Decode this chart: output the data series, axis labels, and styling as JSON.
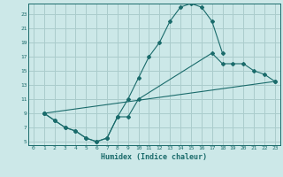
{
  "xlabel": "Humidex (Indice chaleur)",
  "bg_color": "#cce8e8",
  "grid_color": "#aacccc",
  "line_color": "#1a6b6b",
  "xlim": [
    -0.5,
    23.5
  ],
  "ylim": [
    4.5,
    24.5
  ],
  "xticks": [
    0,
    1,
    2,
    3,
    4,
    5,
    6,
    7,
    8,
    9,
    10,
    11,
    12,
    13,
    14,
    15,
    16,
    17,
    18,
    19,
    20,
    21,
    22,
    23
  ],
  "yticks": [
    5,
    7,
    9,
    11,
    13,
    15,
    17,
    19,
    21,
    23
  ],
  "line1_x": [
    1,
    2,
    3,
    4,
    5,
    6,
    7,
    8,
    9,
    10,
    11,
    12,
    13,
    14,
    15,
    16,
    17,
    18
  ],
  "line1_y": [
    9,
    8,
    7,
    6.5,
    5.5,
    5,
    5.5,
    8.5,
    11,
    14,
    17,
    19,
    22,
    24,
    24.5,
    24,
    22,
    17.5
  ],
  "line2_x": [
    1,
    2,
    3,
    4,
    5,
    6,
    7,
    8,
    9,
    10,
    17,
    18,
    19,
    20,
    21,
    22,
    23
  ],
  "line2_y": [
    9,
    8,
    7,
    6.5,
    5.5,
    5,
    5.5,
    8.5,
    8.5,
    11,
    17.5,
    16,
    16,
    16,
    15,
    14.5,
    13.5
  ],
  "line3_x": [
    1,
    23
  ],
  "line3_y": [
    9,
    13.5
  ]
}
